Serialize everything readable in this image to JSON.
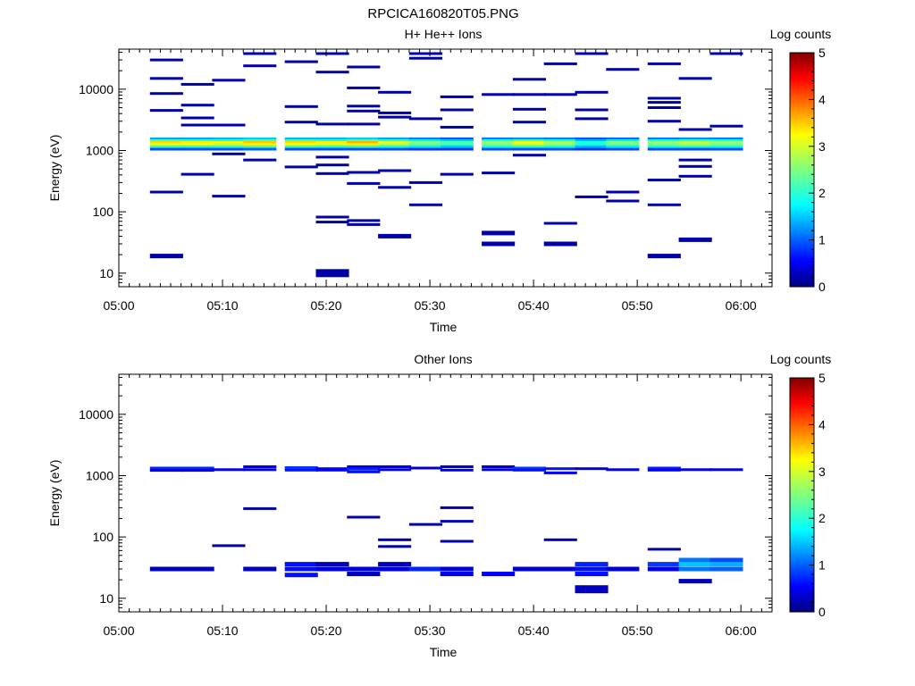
{
  "figure_title": "RPCICA160820T05.PNG",
  "chart_data": [
    {
      "type": "heatmap",
      "title": "H+ He++ Ions",
      "xlabel": "Time",
      "ylabel": "Energy (eV)",
      "xscale": "time",
      "yscale": "log",
      "xlim": [
        "05:00",
        "06:03"
      ],
      "ylim": [
        6,
        45000
      ],
      "x_ticks": [
        "05:00",
        "05:10",
        "05:20",
        "05:30",
        "05:40",
        "05:50",
        "06:00"
      ],
      "y_ticks": [
        "10",
        "100",
        "1000",
        "10000"
      ],
      "colorbar": {
        "label": "Log counts",
        "range": [
          0,
          5
        ],
        "ticks": [
          "0",
          "1",
          "2",
          "3",
          "4",
          "5"
        ]
      },
      "time_bins_start": [
        "05:03",
        "05:06",
        "05:09",
        "05:12",
        "05:16",
        "05:19",
        "05:22",
        "05:25",
        "05:28",
        "05:31",
        "05:35",
        "05:38",
        "05:41",
        "05:44",
        "05:47",
        "05:51",
        "05:54",
        "05:57"
      ],
      "cells": [
        {
          "t": 0,
          "e": [
            1550,
            1450,
            1350,
            1250,
            1150,
            1050
          ],
          "v": [
            1.4,
            2.1,
            3.3,
            3.0,
            2.1,
            1.0
          ]
        },
        {
          "t": 1,
          "e": [
            1550,
            1450,
            1350,
            1250,
            1150,
            1050
          ],
          "v": [
            1.4,
            2.0,
            3.2,
            3.1,
            2.0,
            1.0
          ]
        },
        {
          "t": 2,
          "e": [
            1550,
            1450,
            1350,
            1250,
            1150,
            1050
          ],
          "v": [
            1.5,
            2.0,
            3.1,
            2.9,
            2.0,
            1.0
          ]
        },
        {
          "t": 3,
          "e": [
            1550,
            1450,
            1350,
            1250,
            1150,
            1050
          ],
          "v": [
            1.6,
            2.2,
            3.4,
            3.2,
            2.2,
            1.1
          ]
        },
        {
          "t": 4,
          "e": [
            1550,
            1450,
            1350,
            1250,
            1150,
            1050
          ],
          "v": [
            1.5,
            2.1,
            3.3,
            3.1,
            2.1,
            1.0
          ]
        },
        {
          "t": 5,
          "e": [
            1550,
            1450,
            1350,
            1250,
            1150,
            1050
          ],
          "v": [
            1.5,
            2.0,
            3.2,
            3.0,
            2.0,
            1.0
          ]
        },
        {
          "t": 6,
          "e": [
            1550,
            1450,
            1350,
            1250,
            1150,
            1050
          ],
          "v": [
            1.6,
            2.2,
            3.5,
            3.2,
            2.1,
            1.0
          ]
        },
        {
          "t": 7,
          "e": [
            1550,
            1450,
            1350,
            1250,
            1150,
            1050
          ],
          "v": [
            1.4,
            2.0,
            3.0,
            2.8,
            1.9,
            1.0
          ]
        },
        {
          "t": 8,
          "e": [
            1550,
            1450,
            1350,
            1250,
            1150,
            1050
          ],
          "v": [
            1.2,
            1.8,
            2.5,
            2.4,
            1.8,
            0.9
          ]
        },
        {
          "t": 9,
          "e": [
            1550,
            1450,
            1350,
            1250,
            1150,
            1050
          ],
          "v": [
            1.0,
            1.6,
            2.2,
            2.2,
            1.6,
            0.9
          ]
        },
        {
          "t": 10,
          "e": [
            1550,
            1450,
            1350,
            1250,
            1150,
            1050
          ],
          "v": [
            1.2,
            1.9,
            2.6,
            2.5,
            1.9,
            1.0
          ]
        },
        {
          "t": 11,
          "e": [
            1550,
            1450,
            1350,
            1250,
            1150,
            1050
          ],
          "v": [
            1.3,
            2.1,
            3.1,
            2.9,
            2.0,
            1.0
          ]
        },
        {
          "t": 12,
          "e": [
            1550,
            1450,
            1350,
            1250,
            1150,
            1050
          ],
          "v": [
            1.2,
            1.9,
            2.7,
            2.6,
            1.9,
            1.0
          ]
        },
        {
          "t": 13,
          "e": [
            1550,
            1450,
            1350,
            1250,
            1150,
            1050
          ],
          "v": [
            1.0,
            1.5,
            2.0,
            2.0,
            1.5,
            0.9
          ]
        },
        {
          "t": 14,
          "e": [
            1550,
            1450,
            1350,
            1250,
            1150,
            1050
          ],
          "v": [
            1.1,
            1.8,
            2.5,
            2.4,
            1.8,
            1.0
          ]
        },
        {
          "t": 15,
          "e": [
            1550,
            1450,
            1350,
            1250,
            1150,
            1050
          ],
          "v": [
            1.2,
            1.9,
            2.6,
            2.5,
            1.9,
            1.0
          ]
        },
        {
          "t": 16,
          "e": [
            1550,
            1450,
            1350,
            1250,
            1150,
            1050
          ],
          "v": [
            1.3,
            2.0,
            2.8,
            2.7,
            2.0,
            1.0
          ]
        },
        {
          "t": 17,
          "e": [
            1550,
            1450,
            1350,
            1250,
            1150,
            1050
          ],
          "v": [
            1.2,
            1.9,
            2.6,
            2.5,
            1.9,
            1.0
          ]
        },
        {
          "t": 0,
          "e": [
            30000,
            15000,
            8500,
            4500,
            210,
            19
          ],
          "v": [
            0.2,
            0.2,
            0.2,
            0.2,
            0.2,
            0.2
          ]
        },
        {
          "t": 1,
          "e": [
            12000,
            5500,
            3400,
            2600,
            410
          ],
          "v": [
            0.2,
            0.2,
            0.2,
            0.2,
            0.2
          ]
        },
        {
          "t": 2,
          "e": [
            14000,
            2600,
            880,
            180
          ],
          "v": [
            0.2,
            0.2,
            0.2,
            0.2
          ]
        },
        {
          "t": 3,
          "e": [
            38000,
            24000,
            700
          ],
          "v": [
            0.2,
            0.2,
            0.2
          ]
        },
        {
          "t": 4,
          "e": [
            28000,
            5200,
            2900,
            540
          ],
          "v": [
            0.2,
            0.2,
            0.2,
            0.2
          ]
        },
        {
          "t": 5,
          "e": [
            38000,
            19000,
            2700,
            780,
            580,
            420,
            82,
            68,
            10
          ],
          "v": [
            0.2,
            0.2,
            0.2,
            0.2,
            0.2,
            0.2,
            0.2,
            0.2,
            0.2
          ]
        },
        {
          "t": 6,
          "e": [
            23000,
            10500,
            5300,
            4400,
            2700,
            440,
            290,
            72,
            62
          ],
          "v": [
            0.2,
            0.2,
            0.2,
            0.2,
            0.2,
            0.2,
            0.2,
            0.2,
            0.2
          ]
        },
        {
          "t": 7,
          "e": [
            8900,
            4100,
            3500,
            470,
            250,
            40
          ],
          "v": [
            0.2,
            0.2,
            0.2,
            0.2,
            0.2,
            0.2
          ]
        },
        {
          "t": 8,
          "e": [
            38000,
            32000,
            3300,
            300,
            130
          ],
          "v": [
            0.2,
            0.2,
            0.2,
            0.2,
            0.2
          ]
        },
        {
          "t": 9,
          "e": [
            7500,
            4600,
            2400,
            410
          ],
          "v": [
            0.2,
            0.2,
            0.2,
            0.2
          ]
        },
        {
          "t": 10,
          "e": [
            8200,
            430,
            45,
            30
          ],
          "v": [
            0.2,
            0.2,
            0.2,
            0.2
          ]
        },
        {
          "t": 11,
          "e": [
            14500,
            8200,
            4700,
            2900,
            840
          ],
          "v": [
            0.2,
            0.2,
            0.2,
            0.2,
            0.2
          ]
        },
        {
          "t": 12,
          "e": [
            26000,
            8200,
            65,
            30
          ],
          "v": [
            0.2,
            0.2,
            0.2,
            0.2
          ]
        },
        {
          "t": 13,
          "e": [
            38000,
            8900,
            4600,
            3300,
            175
          ],
          "v": [
            0.2,
            0.2,
            0.2,
            0.2,
            0.2
          ]
        },
        {
          "t": 14,
          "e": [
            21000,
            210,
            150
          ],
          "v": [
            0.2,
            0.2,
            0.2
          ]
        },
        {
          "t": 15,
          "e": [
            26000,
            7100,
            6100,
            5000,
            3000,
            330,
            130,
            19
          ],
          "v": [
            0.2,
            0.2,
            0.2,
            0.2,
            0.2,
            0.2,
            0.2,
            0.2
          ]
        },
        {
          "t": 16,
          "e": [
            15000,
            2200,
            700,
            550,
            380,
            35
          ],
          "v": [
            0.2,
            0.2,
            0.2,
            0.2,
            0.2,
            0.2
          ]
        },
        {
          "t": 17,
          "e": [
            38000,
            2500
          ],
          "v": [
            0.2,
            0.2
          ]
        }
      ]
    },
    {
      "type": "heatmap",
      "title": "Other Ions",
      "xlabel": "Time",
      "ylabel": "Energy (eV)",
      "xscale": "time",
      "yscale": "log",
      "xlim": [
        "05:00",
        "06:03"
      ],
      "ylim": [
        6,
        45000
      ],
      "x_ticks": [
        "05:00",
        "05:10",
        "05:20",
        "05:30",
        "05:40",
        "05:50",
        "06:00"
      ],
      "y_ticks": [
        "10",
        "100",
        "1000",
        "10000"
      ],
      "colorbar": {
        "label": "Log counts",
        "range": [
          0,
          5
        ],
        "ticks": [
          "0",
          "1",
          "2",
          "3",
          "4",
          "5"
        ]
      },
      "time_bins_start": [
        "05:03",
        "05:06",
        "05:09",
        "05:12",
        "05:16",
        "05:19",
        "05:22",
        "05:25",
        "05:28",
        "05:31",
        "05:35",
        "05:38",
        "05:41",
        "05:44",
        "05:47",
        "05:51",
        "05:54",
        "05:57"
      ],
      "cells": [
        {
          "t": 0,
          "e": [
            1330,
            1220,
            30
          ],
          "v": [
            0.8,
            0.5,
            0.3
          ]
        },
        {
          "t": 1,
          "e": [
            1330,
            1220,
            30
          ],
          "v": [
            0.8,
            0.5,
            0.3
          ]
        },
        {
          "t": 2,
          "e": [
            1250,
            72
          ],
          "v": [
            0.6,
            0.2
          ]
        },
        {
          "t": 3,
          "e": [
            1400,
            1250,
            290,
            30
          ],
          "v": [
            0.5,
            0.6,
            0.2,
            0.3
          ]
        },
        {
          "t": 4,
          "e": [
            1350,
            1230,
            36,
            30,
            24
          ],
          "v": [
            0.9,
            0.7,
            0.7,
            0.7,
            0.7
          ]
        },
        {
          "t": 5,
          "e": [
            1300,
            1230,
            36,
            30
          ],
          "v": [
            0.6,
            0.6,
            0.3,
            0.5
          ]
        },
        {
          "t": 6,
          "e": [
            1400,
            1280,
            1150,
            210,
            30,
            25
          ],
          "v": [
            0.5,
            0.8,
            0.7,
            0.2,
            0.5,
            0.3
          ]
        },
        {
          "t": 7,
          "e": [
            1400,
            1250,
            90,
            70,
            36,
            30
          ],
          "v": [
            0.5,
            0.6,
            0.2,
            0.2,
            0.3,
            0.5
          ]
        },
        {
          "t": 8,
          "e": [
            1330,
            160,
            30
          ],
          "v": [
            0.4,
            0.2,
            0.8
          ]
        },
        {
          "t": 9,
          "e": [
            1400,
            1230,
            300,
            180,
            85,
            30,
            25
          ],
          "v": [
            0.4,
            0.6,
            0.2,
            0.3,
            0.2,
            0.5,
            0.5
          ]
        },
        {
          "t": 10,
          "e": [
            1400,
            1250,
            25
          ],
          "v": [
            0.4,
            0.6,
            0.6
          ]
        },
        {
          "t": 11,
          "e": [
            1330,
            1230,
            30
          ],
          "v": [
            0.9,
            0.7,
            0.4
          ]
        },
        {
          "t": 12,
          "e": [
            1300,
            1110,
            90,
            30
          ],
          "v": [
            0.7,
            0.6,
            0.2,
            0.4
          ]
        },
        {
          "t": 13,
          "e": [
            1300,
            36,
            30,
            25,
            14
          ],
          "v": [
            0.5,
            0.8,
            0.7,
            0.7,
            0.3
          ]
        },
        {
          "t": 14,
          "e": [
            1250,
            30
          ],
          "v": [
            0.5,
            0.4
          ]
        },
        {
          "t": 15,
          "e": [
            1330,
            1230,
            63,
            36,
            30
          ],
          "v": [
            0.8,
            0.6,
            0.2,
            0.9,
            0.6
          ]
        },
        {
          "t": 16,
          "e": [
            1250,
            42,
            36,
            30,
            19
          ],
          "v": [
            0.6,
            1.2,
            1.6,
            1.2,
            0.3
          ]
        },
        {
          "t": 17,
          "e": [
            1250,
            42,
            36,
            30
          ],
          "v": [
            0.5,
            1.0,
            1.5,
            1.1
          ]
        }
      ]
    }
  ]
}
